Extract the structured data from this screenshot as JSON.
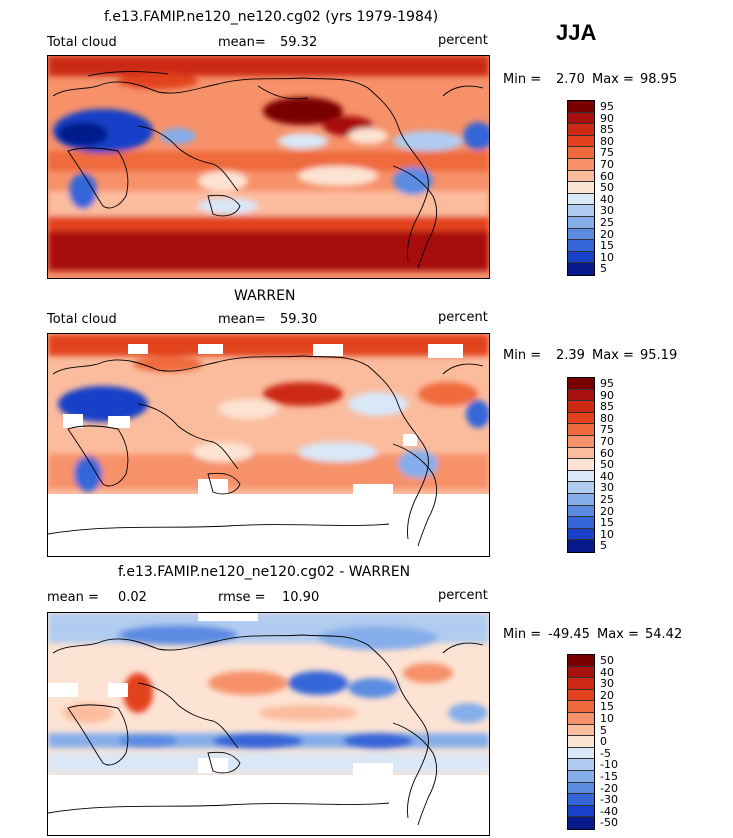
{
  "season": "JJA",
  "panels": [
    {
      "title": "f.e13.FAMIP.ne120_ne120.cg02 (yrs 1979-1984)",
      "left_label": "Total cloud",
      "mean_label": "mean=",
      "mean_value": "59.32",
      "unit": "percent",
      "min_label": "Min =",
      "min_value": "2.70",
      "max_label": "Max =",
      "max_value": "98.95"
    },
    {
      "title": "WARREN",
      "left_label": "Total cloud",
      "mean_label": "mean=",
      "mean_value": "59.30",
      "unit": "percent",
      "min_label": "Min =",
      "min_value": "2.39",
      "max_label": "Max =",
      "max_value": "95.19"
    },
    {
      "title": "f.e13.FAMIP.ne120_ne120.cg02 - WARREN",
      "left_label": "mean =",
      "left_value": "0.02",
      "mid_label": "rmse =",
      "mid_value": "10.90",
      "unit": "percent",
      "min_label": "Min =",
      "min_value": "-49.45",
      "max_label": "Max =",
      "max_value": "54.42"
    }
  ],
  "colorbars": {
    "abs_levels": [
      "95",
      "90",
      "85",
      "80",
      "75",
      "70",
      "60",
      "50",
      "40",
      "30",
      "25",
      "20",
      "15",
      "10",
      "5"
    ],
    "abs_colors": [
      "#7a0000",
      "#a80f0f",
      "#cc2a14",
      "#e2431e",
      "#ef6a3c",
      "#f6916a",
      "#fbbc9e",
      "#fde3d3",
      "#d9e7f7",
      "#b0ccf0",
      "#86aeea",
      "#5c8be2",
      "#3566d8",
      "#1840c8",
      "#061a8c"
    ],
    "diff_levels": [
      "50",
      "40",
      "30",
      "20",
      "15",
      "10",
      "5",
      "0",
      "-5",
      "-10",
      "-15",
      "-20",
      "-30",
      "-40",
      "-50"
    ],
    "diff_colors": [
      "#7a0000",
      "#a80f0f",
      "#cc2a14",
      "#e2431e",
      "#ef6a3c",
      "#f6916a",
      "#fbbc9e",
      "#fde3d3",
      "#d9e7f7",
      "#b0ccf0",
      "#86aeea",
      "#5c8be2",
      "#3566d8",
      "#1840c8",
      "#061a8c"
    ]
  }
}
